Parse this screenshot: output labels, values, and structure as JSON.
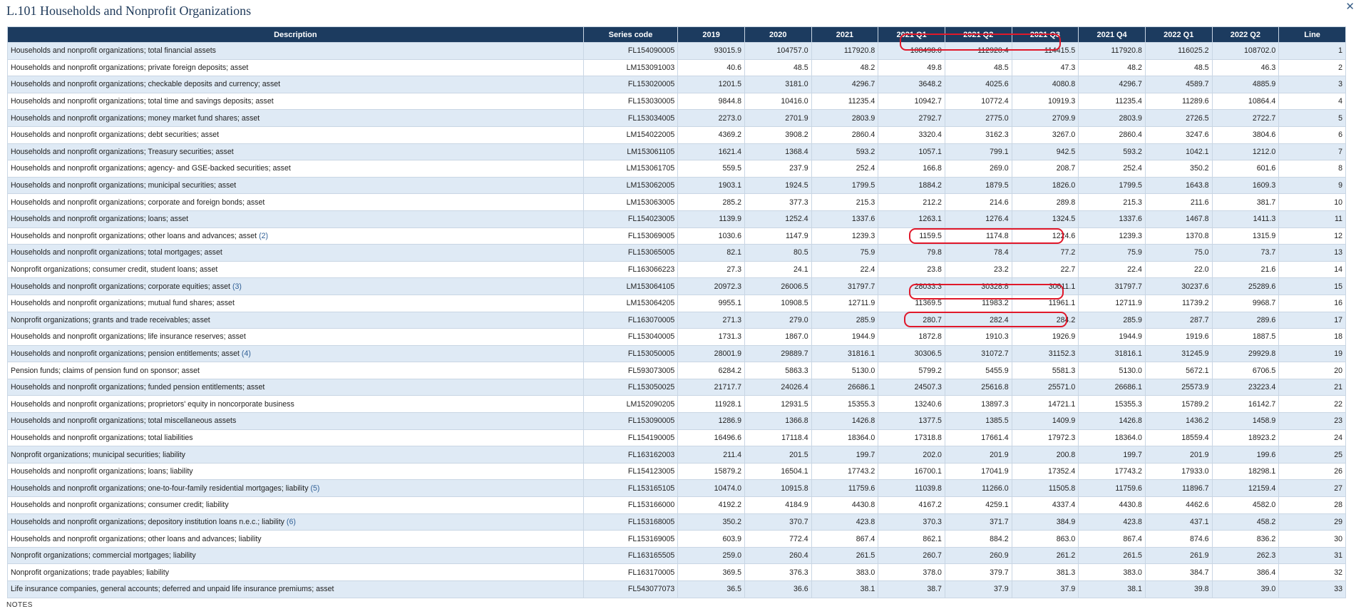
{
  "title": "L.101 Households and Nonprofit Organizations",
  "close_icon": "close-icon",
  "columns": [
    "Description",
    "Series code",
    "2019",
    "2020",
    "2021",
    "2021 Q1",
    "2021 Q2",
    "2021 Q3",
    "2021 Q4",
    "2022 Q1",
    "2022 Q2",
    "Line"
  ],
  "rows": [
    {
      "desc": "Households and nonprofit organizations; total financial assets",
      "note": "",
      "code": "FL154090005",
      "values": [
        "93015.9",
        "104757.0",
        "117920.8",
        "108498.0",
        "112920.4",
        "114415.5",
        "117920.8",
        "116025.2",
        "108702.0"
      ],
      "line": "1"
    },
    {
      "desc": "Households and nonprofit organizations; private foreign deposits; asset",
      "note": "",
      "code": "LM153091003",
      "values": [
        "40.6",
        "48.5",
        "48.2",
        "49.8",
        "48.5",
        "47.3",
        "48.2",
        "48.5",
        "46.3"
      ],
      "line": "2"
    },
    {
      "desc": "Households and nonprofit organizations; checkable deposits and currency; asset",
      "note": "",
      "code": "FL153020005",
      "values": [
        "1201.5",
        "3181.0",
        "4296.7",
        "3648.2",
        "4025.6",
        "4080.8",
        "4296.7",
        "4589.7",
        "4885.9"
      ],
      "line": "3"
    },
    {
      "desc": "Households and nonprofit organizations; total time and savings deposits; asset",
      "note": "",
      "code": "FL153030005",
      "values": [
        "9844.8",
        "10416.0",
        "11235.4",
        "10942.7",
        "10772.4",
        "10919.3",
        "11235.4",
        "11289.6",
        "10864.4"
      ],
      "line": "4"
    },
    {
      "desc": "Households and nonprofit organizations; money market fund shares; asset",
      "note": "",
      "code": "FL153034005",
      "values": [
        "2273.0",
        "2701.9",
        "2803.9",
        "2792.7",
        "2775.0",
        "2709.9",
        "2803.9",
        "2726.5",
        "2722.7"
      ],
      "line": "5"
    },
    {
      "desc": "Households and nonprofit organizations; debt securities; asset",
      "note": "",
      "code": "LM154022005",
      "values": [
        "4369.2",
        "3908.2",
        "2860.4",
        "3320.4",
        "3162.3",
        "3267.0",
        "2860.4",
        "3247.6",
        "3804.6"
      ],
      "line": "6"
    },
    {
      "desc": "Households and nonprofit organizations; Treasury securities; asset",
      "note": "",
      "code": "LM153061105",
      "values": [
        "1621.4",
        "1368.4",
        "593.2",
        "1057.1",
        "799.1",
        "942.5",
        "593.2",
        "1042.1",
        "1212.0"
      ],
      "line": "7"
    },
    {
      "desc": "Households and nonprofit organizations; agency- and GSE-backed securities; asset",
      "note": "",
      "code": "LM153061705",
      "values": [
        "559.5",
        "237.9",
        "252.4",
        "166.8",
        "269.0",
        "208.7",
        "252.4",
        "350.2",
        "601.6"
      ],
      "line": "8"
    },
    {
      "desc": "Households and nonprofit organizations; municipal securities; asset",
      "note": "",
      "code": "LM153062005",
      "values": [
        "1903.1",
        "1924.5",
        "1799.5",
        "1884.2",
        "1879.5",
        "1826.0",
        "1799.5",
        "1643.8",
        "1609.3"
      ],
      "line": "9"
    },
    {
      "desc": "Households and nonprofit organizations; corporate and foreign bonds; asset",
      "note": "",
      "code": "LM153063005",
      "values": [
        "285.2",
        "377.3",
        "215.3",
        "212.2",
        "214.6",
        "289.8",
        "215.3",
        "211.6",
        "381.7"
      ],
      "line": "10"
    },
    {
      "desc": "Households and nonprofit organizations; loans; asset",
      "note": "",
      "code": "FL154023005",
      "values": [
        "1139.9",
        "1252.4",
        "1337.6",
        "1263.1",
        "1276.4",
        "1324.5",
        "1337.6",
        "1467.8",
        "1411.3"
      ],
      "line": "11"
    },
    {
      "desc": "Households and nonprofit organizations; other loans and advances; asset",
      "note": "(2)",
      "code": "FL153069005",
      "values": [
        "1030.6",
        "1147.9",
        "1239.3",
        "1159.5",
        "1174.8",
        "1224.6",
        "1239.3",
        "1370.8",
        "1315.9"
      ],
      "line": "12"
    },
    {
      "desc": "Households and nonprofit organizations; total mortgages; asset",
      "note": "",
      "code": "FL153065005",
      "values": [
        "82.1",
        "80.5",
        "75.9",
        "79.8",
        "78.4",
        "77.2",
        "75.9",
        "75.0",
        "73.7"
      ],
      "line": "13"
    },
    {
      "desc": "Nonprofit organizations; consumer credit, student loans; asset",
      "note": "",
      "code": "FL163066223",
      "values": [
        "27.3",
        "24.1",
        "22.4",
        "23.8",
        "23.2",
        "22.7",
        "22.4",
        "22.0",
        "21.6"
      ],
      "line": "14"
    },
    {
      "desc": "Households and nonprofit organizations; corporate equities; asset",
      "note": "(3)",
      "code": "LM153064105",
      "values": [
        "20972.3",
        "26006.5",
        "31797.7",
        "28033.3",
        "30328.8",
        "30611.1",
        "31797.7",
        "30237.6",
        "25289.6"
      ],
      "line": "15"
    },
    {
      "desc": "Households and nonprofit organizations; mutual fund shares; asset",
      "note": "",
      "code": "LM153064205",
      "values": [
        "9955.1",
        "10908.5",
        "12711.9",
        "11369.5",
        "11983.2",
        "11961.1",
        "12711.9",
        "11739.2",
        "9968.7"
      ],
      "line": "16"
    },
    {
      "desc": "Nonprofit organizations; grants and trade receivables; asset",
      "note": "",
      "code": "FL163070005",
      "values": [
        "271.3",
        "279.0",
        "285.9",
        "280.7",
        "282.4",
        "284.2",
        "285.9",
        "287.7",
        "289.6"
      ],
      "line": "17"
    },
    {
      "desc": "Households and nonprofit organizations; life insurance reserves; asset",
      "note": "",
      "code": "FL153040005",
      "values": [
        "1731.3",
        "1867.0",
        "1944.9",
        "1872.8",
        "1910.3",
        "1926.9",
        "1944.9",
        "1919.6",
        "1887.5"
      ],
      "line": "18"
    },
    {
      "desc": "Households and nonprofit organizations; pension entitlements; asset",
      "note": "(4)",
      "code": "FL153050005",
      "values": [
        "28001.9",
        "29889.7",
        "31816.1",
        "30306.5",
        "31072.7",
        "31152.3",
        "31816.1",
        "31245.9",
        "29929.8"
      ],
      "line": "19"
    },
    {
      "desc": "Pension funds; claims of pension fund on sponsor; asset",
      "note": "",
      "code": "FL593073005",
      "values": [
        "6284.2",
        "5863.3",
        "5130.0",
        "5799.2",
        "5455.9",
        "5581.3",
        "5130.0",
        "5672.1",
        "6706.5"
      ],
      "line": "20"
    },
    {
      "desc": "Households and nonprofit organizations; funded pension entitlements; asset",
      "note": "",
      "code": "FL153050025",
      "values": [
        "21717.7",
        "24026.4",
        "26686.1",
        "24507.3",
        "25616.8",
        "25571.0",
        "26686.1",
        "25573.9",
        "23223.4"
      ],
      "line": "21"
    },
    {
      "desc": "Households and nonprofit organizations; proprietors' equity in noncorporate business",
      "note": "",
      "code": "LM152090205",
      "values": [
        "11928.1",
        "12931.5",
        "15355.3",
        "13240.6",
        "13897.3",
        "14721.1",
        "15355.3",
        "15789.2",
        "16142.7"
      ],
      "line": "22"
    },
    {
      "desc": "Households and nonprofit organizations; total miscellaneous assets",
      "note": "",
      "code": "FL153090005",
      "values": [
        "1286.9",
        "1366.8",
        "1426.8",
        "1377.5",
        "1385.5",
        "1409.9",
        "1426.8",
        "1436.2",
        "1458.9"
      ],
      "line": "23"
    },
    {
      "desc": "Households and nonprofit organizations; total liabilities",
      "note": "",
      "code": "FL154190005",
      "values": [
        "16496.6",
        "17118.4",
        "18364.0",
        "17318.8",
        "17661.4",
        "17972.3",
        "18364.0",
        "18559.4",
        "18923.2"
      ],
      "line": "24"
    },
    {
      "desc": "Nonprofit organizations; municipal securities; liability",
      "note": "",
      "code": "FL163162003",
      "values": [
        "211.4",
        "201.5",
        "199.7",
        "202.0",
        "201.9",
        "200.8",
        "199.7",
        "201.9",
        "199.6"
      ],
      "line": "25"
    },
    {
      "desc": "Households and nonprofit organizations; loans; liability",
      "note": "",
      "code": "FL154123005",
      "values": [
        "15879.2",
        "16504.1",
        "17743.2",
        "16700.1",
        "17041.9",
        "17352.4",
        "17743.2",
        "17933.0",
        "18298.1"
      ],
      "line": "26"
    },
    {
      "desc": "Households and nonprofit organizations; one-to-four-family residential mortgages; liability",
      "note": "(5)",
      "code": "FL153165105",
      "values": [
        "10474.0",
        "10915.8",
        "11759.6",
        "11039.8",
        "11266.0",
        "11505.8",
        "11759.6",
        "11896.7",
        "12159.4"
      ],
      "line": "27"
    },
    {
      "desc": "Households and nonprofit organizations; consumer credit; liability",
      "note": "",
      "code": "FL153166000",
      "values": [
        "4192.2",
        "4184.9",
        "4430.8",
        "4167.2",
        "4259.1",
        "4337.4",
        "4430.8",
        "4462.6",
        "4582.0"
      ],
      "line": "28"
    },
    {
      "desc": "Households and nonprofit organizations; depository institution loans n.e.c.; liability",
      "note": "(6)",
      "code": "FL153168005",
      "values": [
        "350.2",
        "370.7",
        "423.8",
        "370.3",
        "371.7",
        "384.9",
        "423.8",
        "437.1",
        "458.2"
      ],
      "line": "29"
    },
    {
      "desc": "Households and nonprofit organizations; other loans and advances; liability",
      "note": "",
      "code": "FL153169005",
      "values": [
        "603.9",
        "772.4",
        "867.4",
        "862.1",
        "884.2",
        "863.0",
        "867.4",
        "874.6",
        "836.2"
      ],
      "line": "30"
    },
    {
      "desc": "Nonprofit organizations; commercial mortgages; liability",
      "note": "",
      "code": "FL163165505",
      "values": [
        "259.0",
        "260.4",
        "261.5",
        "260.7",
        "260.9",
        "261.2",
        "261.5",
        "261.9",
        "262.3"
      ],
      "line": "31"
    },
    {
      "desc": "Nonprofit organizations; trade payables; liability",
      "note": "",
      "code": "FL163170005",
      "values": [
        "369.5",
        "376.3",
        "383.0",
        "378.0",
        "379.7",
        "381.3",
        "383.0",
        "384.7",
        "386.4"
      ],
      "line": "32"
    },
    {
      "desc": "Life insurance companies, general accounts; deferred and unpaid life insurance premiums; asset",
      "note": "",
      "code": "FL543077073",
      "values": [
        "36.5",
        "36.6",
        "38.1",
        "38.7",
        "37.9",
        "37.9",
        "38.1",
        "39.8",
        "39.0"
      ],
      "line": "33"
    }
  ],
  "notes_label": "NOTES",
  "annotation_color": "#e0182a"
}
